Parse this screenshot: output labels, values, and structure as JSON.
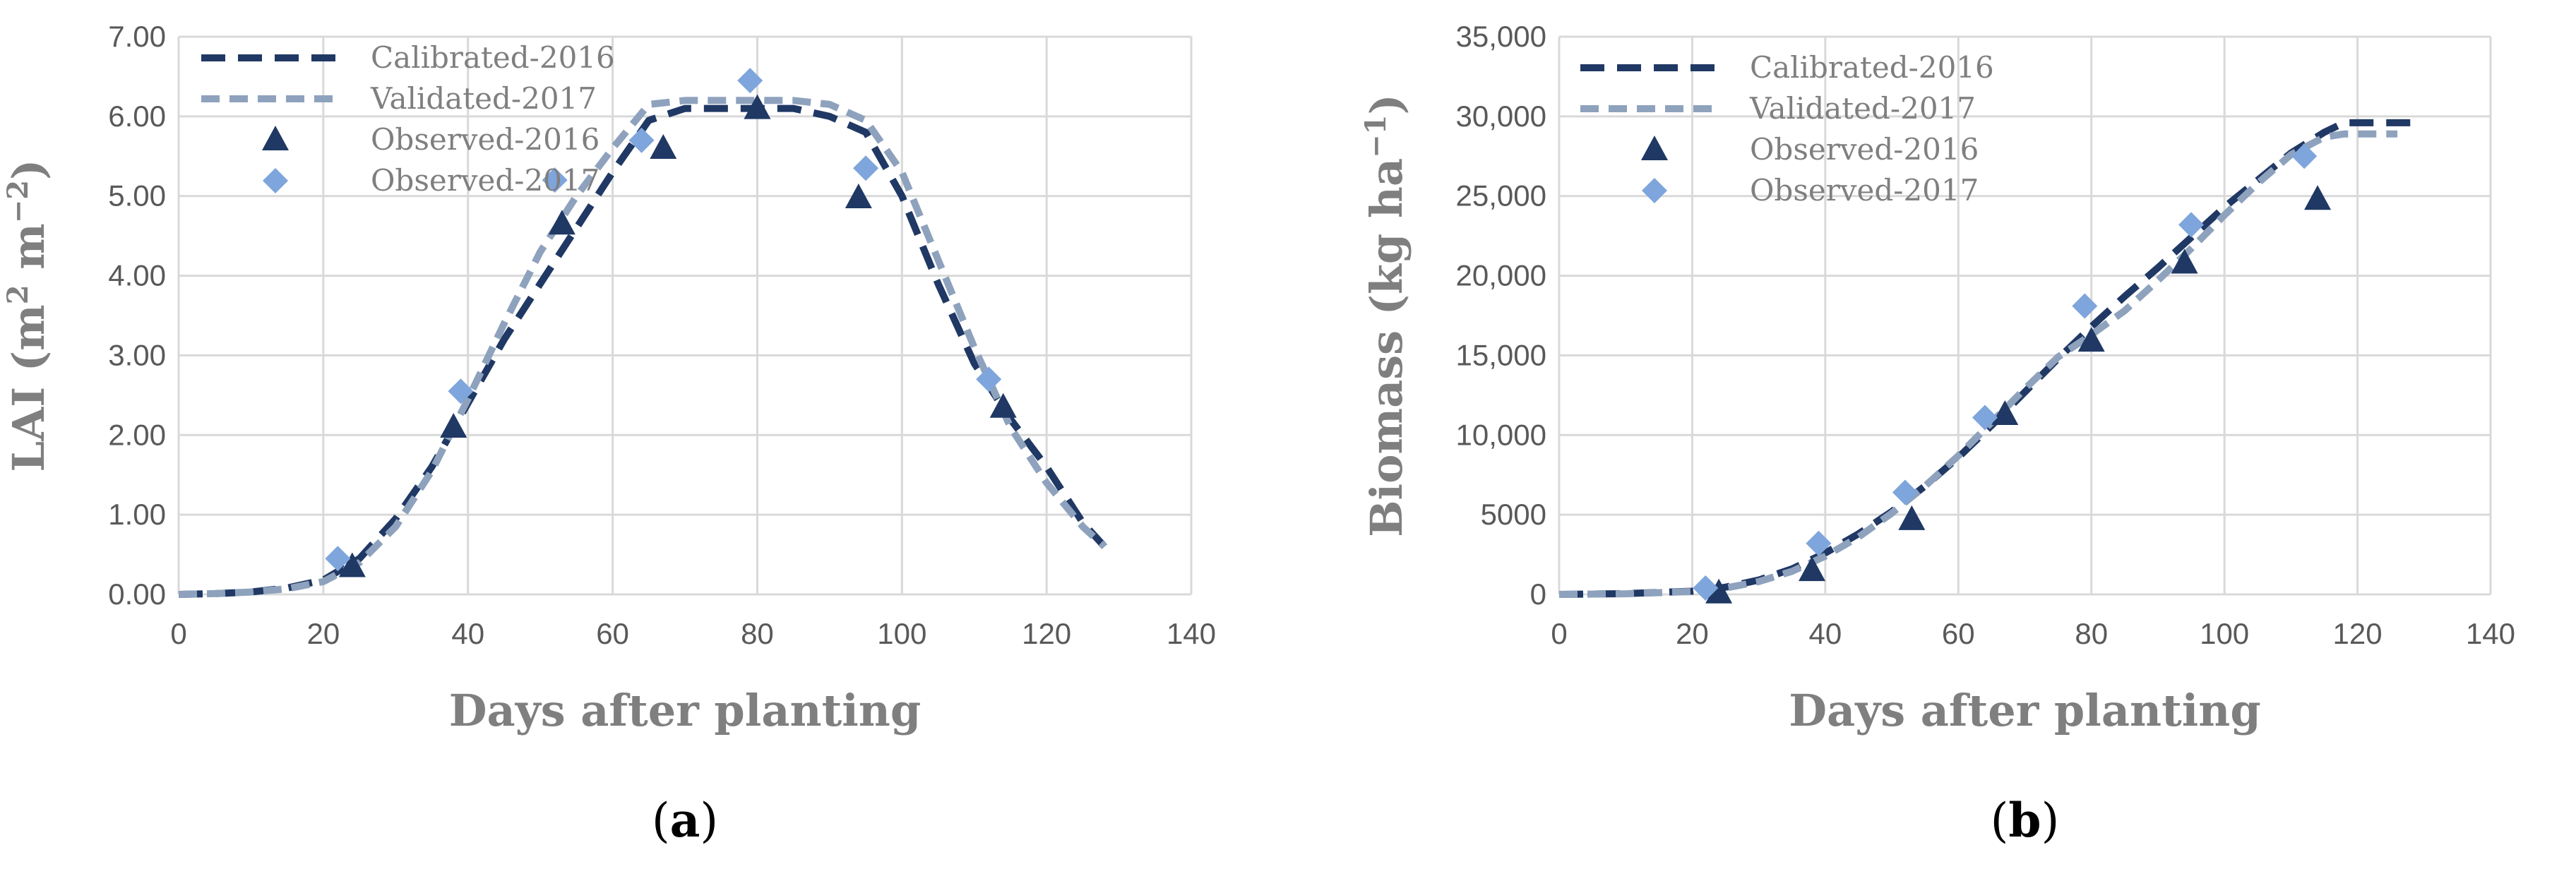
{
  "colors": {
    "calibrated": "#203864",
    "validated": "#8ea2bd",
    "observed2016": "#1f3864",
    "observed2017": "#7ea5dc",
    "grid": "#d9d9d9"
  },
  "chart_data": [
    {
      "type": "line",
      "panel_label": "a",
      "title": "",
      "xlabel": "Days after planting",
      "ylabel_prefix": "LAI (m",
      "ylabel_sup1": "2",
      "ylabel_mid": " m",
      "ylabel_sup2": "−2",
      "ylabel_suffix": ")",
      "xlim": [
        0,
        140
      ],
      "ylim": [
        0,
        7
      ],
      "x_ticks": [
        0,
        20,
        40,
        60,
        80,
        100,
        120,
        140
      ],
      "y_ticks": [
        0,
        1,
        2,
        3,
        4,
        5,
        6,
        7
      ],
      "y_tick_labels": [
        "0.00",
        "1.00",
        "2.00",
        "3.00",
        "4.00",
        "5.00",
        "6.00",
        "7.00"
      ],
      "grid": true,
      "legend_position": "top-left",
      "series": [
        {
          "name": "Calibrated-2016",
          "style": "dashed-line",
          "x": [
            0,
            5,
            10,
            15,
            20,
            25,
            30,
            35,
            40,
            45,
            50,
            55,
            60,
            65,
            70,
            75,
            80,
            85,
            90,
            95,
            100,
            105,
            110,
            115,
            120,
            125,
            128
          ],
          "y": [
            0,
            0.01,
            0.03,
            0.08,
            0.18,
            0.45,
            0.95,
            1.6,
            2.4,
            3.2,
            3.9,
            4.6,
            5.3,
            5.95,
            6.1,
            6.1,
            6.1,
            6.1,
            6.0,
            5.8,
            5.0,
            3.9,
            2.9,
            2.2,
            1.6,
            0.9,
            0.6
          ]
        },
        {
          "name": "Validated-2017",
          "style": "dashed-line",
          "x": [
            0,
            5,
            10,
            15,
            20,
            25,
            30,
            35,
            40,
            45,
            50,
            55,
            60,
            65,
            70,
            75,
            80,
            85,
            90,
            95,
            100,
            105,
            110,
            115,
            120,
            125,
            128
          ],
          "y": [
            0,
            0.01,
            0.03,
            0.07,
            0.16,
            0.4,
            0.85,
            1.55,
            2.45,
            3.4,
            4.3,
            5.0,
            5.6,
            6.15,
            6.2,
            6.2,
            6.2,
            6.2,
            6.15,
            5.95,
            5.3,
            4.2,
            3.1,
            2.1,
            1.4,
            0.85,
            0.6
          ]
        },
        {
          "name": "Observed-2016",
          "style": "triangle-marker",
          "x": [
            24,
            38,
            53,
            67,
            80,
            94,
            114
          ],
          "y": [
            0.35,
            2.1,
            4.65,
            5.6,
            6.1,
            4.98,
            2.35
          ]
        },
        {
          "name": "Observed-2017",
          "style": "diamond-marker",
          "x": [
            22,
            39,
            52,
            64,
            79,
            95,
            112
          ],
          "y": [
            0.45,
            2.55,
            5.2,
            5.7,
            6.45,
            5.35,
            2.7
          ]
        }
      ]
    },
    {
      "type": "line",
      "panel_label": "b",
      "title": "",
      "xlabel": "Days after planting",
      "ylabel_prefix": "Biomass (kg ha",
      "ylabel_sup1": "−1",
      "ylabel_mid": "",
      "ylabel_sup2": "",
      "ylabel_suffix": ")",
      "xlim": [
        0,
        140
      ],
      "ylim": [
        0,
        35000
      ],
      "x_ticks": [
        0,
        20,
        40,
        60,
        80,
        100,
        120,
        140
      ],
      "y_ticks": [
        0,
        5000,
        10000,
        15000,
        20000,
        25000,
        30000,
        35000
      ],
      "y_tick_labels": [
        "0",
        "5000",
        "10,000",
        "15,000",
        "20,000",
        "25,000",
        "30,000",
        "35,000"
      ],
      "grid": true,
      "legend_position": "top-left",
      "series": [
        {
          "name": "Calibrated-2016",
          "style": "dashed-line",
          "x": [
            0,
            10,
            20,
            25,
            30,
            35,
            40,
            45,
            50,
            55,
            60,
            65,
            70,
            75,
            80,
            85,
            90,
            95,
            100,
            105,
            110,
            115,
            118,
            122,
            125,
            128
          ],
          "y": [
            0,
            50,
            200,
            450,
            900,
            1600,
            2600,
            3800,
            5200,
            6800,
            8600,
            10600,
            12700,
            14800,
            16800,
            18700,
            20500,
            22400,
            24300,
            26000,
            27700,
            29000,
            29600,
            29600,
            29600,
            29600
          ]
        },
        {
          "name": "Validated-2017",
          "style": "dashed-line",
          "x": [
            0,
            10,
            20,
            25,
            30,
            35,
            40,
            45,
            50,
            55,
            60,
            65,
            70,
            75,
            80,
            85,
            90,
            95,
            100,
            105,
            110,
            115,
            118,
            122,
            126
          ],
          "y": [
            0,
            40,
            180,
            400,
            800,
            1450,
            2400,
            3600,
            5100,
            6800,
            8700,
            10800,
            12900,
            14900,
            16300,
            17800,
            19700,
            21700,
            23800,
            25800,
            27600,
            28700,
            28900,
            28900,
            28900
          ]
        },
        {
          "name": "Observed-2016",
          "style": "triangle-marker",
          "x": [
            24,
            38,
            53,
            67,
            80,
            94,
            114
          ],
          "y": [
            100,
            1500,
            4700,
            11300,
            15900,
            20800,
            24800
          ]
        },
        {
          "name": "Observed-2017",
          "style": "diamond-marker",
          "x": [
            22,
            39,
            52,
            64,
            79,
            95,
            112
          ],
          "y": [
            400,
            3200,
            6400,
            11100,
            18100,
            23200,
            27500
          ]
        }
      ]
    }
  ]
}
